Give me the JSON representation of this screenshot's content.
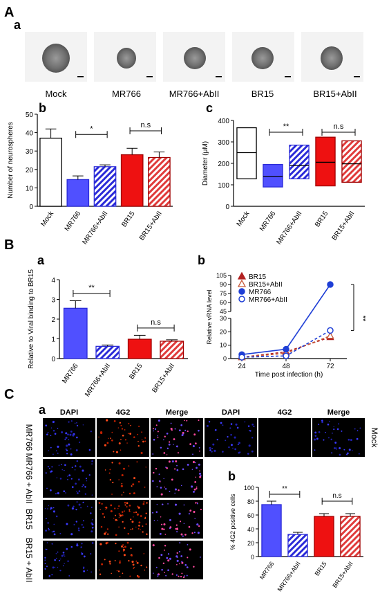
{
  "panel_labels": {
    "A": "A",
    "Aa": "a",
    "Ab": "b",
    "Ac": "c",
    "B": "B",
    "Ba": "a",
    "Bb": "b",
    "C": "C",
    "Ca": "a",
    "Cb": "b"
  },
  "sig": {
    "one_star": "*",
    "two_star": "**",
    "ns": "n.s"
  },
  "colors": {
    "mock": "#ffffff",
    "mr766": "#5050ff",
    "mr766_ablll": "#2a2ad8",
    "br15": "#ee1111",
    "br15_ablll": "#e03b3b",
    "ink": "#000000"
  },
  "micrographs": [
    "Mock",
    "MR766",
    "MR766+AbII",
    "BR15",
    "BR15+AbII"
  ],
  "chart_data": [
    {
      "panel": "A-b",
      "type": "bar",
      "categories": [
        "Mock",
        "MR766",
        "MR766+AbII",
        "BR15",
        "BR15+AbII"
      ],
      "values": [
        37,
        14.5,
        21.5,
        28,
        26.5
      ],
      "errors": [
        5,
        2,
        1,
        3.5,
        3
      ],
      "ylabel": "Number of neurospheres",
      "ylim": [
        0,
        50
      ],
      "yticks": [
        0,
        10,
        20,
        30,
        40,
        50
      ],
      "comparisons": [
        {
          "between": [
            "MR766",
            "MR766+AbII"
          ],
          "label": "*"
        },
        {
          "between": [
            "BR15",
            "BR15+AbII"
          ],
          "label": "n.s"
        }
      ]
    },
    {
      "panel": "A-c",
      "type": "box",
      "categories": [
        "Mock",
        "MR766",
        "MR766+AbII",
        "BR15",
        "BR15+AbII"
      ],
      "boxes": [
        {
          "min": 128,
          "median": 250,
          "max": 366
        },
        {
          "min": 90,
          "median": 140,
          "max": 195
        },
        {
          "min": 128,
          "median": 190,
          "max": 285
        },
        {
          "min": 95,
          "median": 205,
          "max": 322
        },
        {
          "min": 112,
          "median": 198,
          "max": 305
        }
      ],
      "ylabel": "Diameter (μM)",
      "ylim": [
        0,
        400
      ],
      "yticks": [
        0,
        100,
        200,
        300,
        400
      ],
      "comparisons": [
        {
          "between": [
            "MR766",
            "MR766+AbII"
          ],
          "label": "**"
        },
        {
          "between": [
            "BR15",
            "BR15+AbII"
          ],
          "label": "n.s"
        }
      ]
    },
    {
      "panel": "B-a",
      "type": "bar",
      "categories": [
        "MR766",
        "MR766+AbII",
        "BR15",
        "BR15+AbII"
      ],
      "values": [
        2.55,
        0.62,
        0.98,
        0.88
      ],
      "errors": [
        0.38,
        0.07,
        0.2,
        0.07
      ],
      "ylabel": "Relative to Viral binding to BR15",
      "ylim": [
        0,
        4
      ],
      "yticks": [
        0,
        1,
        2,
        3,
        4
      ],
      "comparisons": [
        {
          "between": [
            "MR766",
            "MR766+AbII"
          ],
          "label": "**"
        },
        {
          "between": [
            "BR15",
            "BR15+AbII"
          ],
          "label": "n.s"
        }
      ]
    },
    {
      "panel": "B-b",
      "type": "line",
      "x": [
        24,
        48,
        72
      ],
      "xticks": [
        24,
        48,
        72
      ],
      "xlabel": "Time post infection (h)",
      "ylabel": "Relative vRNA level",
      "yticks_lower": [
        0,
        10,
        20,
        30
      ],
      "yticks_upper": [
        45,
        60,
        75,
        90,
        105
      ],
      "series": [
        {
          "name": "BR15",
          "values": [
            1,
            5,
            16
          ]
        },
        {
          "name": "BR15+AbII",
          "values": [
            1,
            4,
            17
          ]
        },
        {
          "name": "MR766",
          "values": [
            3,
            7,
            90
          ]
        },
        {
          "name": "MR766+AbII",
          "values": [
            1,
            2,
            21
          ]
        }
      ],
      "annotation": "**",
      "legend_position": "top-left"
    },
    {
      "panel": "C-b",
      "type": "bar",
      "categories": [
        "MR766",
        "MR766+AbII",
        "BR15",
        "BR15+AbII"
      ],
      "values": [
        75,
        32,
        58,
        58
      ],
      "errors": [
        5,
        3,
        4,
        4
      ],
      "ylabel": "% 4G2 positive cells",
      "ylim": [
        0,
        100
      ],
      "yticks": [
        0,
        20,
        40,
        60,
        80,
        100
      ],
      "comparisons": [
        {
          "between": [
            "MR766",
            "MR766+AbII"
          ],
          "label": "**"
        },
        {
          "between": [
            "BR15",
            "BR15+AbII"
          ],
          "label": "n.s"
        }
      ]
    }
  ],
  "immuno": {
    "channels": [
      "DAPI",
      "4G2",
      "Merge"
    ],
    "rows": [
      "MR766",
      "MR766 + AbII",
      "BR15",
      "BR15 + AbII"
    ],
    "mock_label": "Mock"
  }
}
